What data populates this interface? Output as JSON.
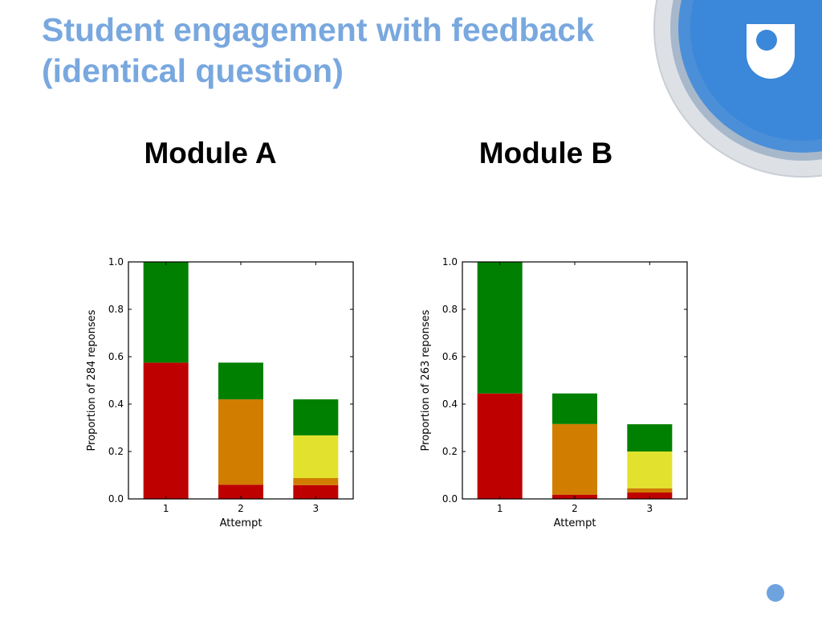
{
  "slide": {
    "title_line1": "Student engagement with feedback",
    "title_line2": "(identical question)"
  },
  "logo": {
    "icon": "open-university-logo-icon"
  },
  "colors": {
    "title": "#79a8df",
    "correct": "#008000",
    "wrong": "#bf0000",
    "orange": "#d07d00",
    "yellow": "#e2e22e"
  },
  "chart_data": [
    {
      "type": "bar",
      "stacked": true,
      "title": "Module A",
      "xlabel": "Attempt",
      "ylabel": "Proportion of 284 reponses",
      "categories": [
        "1",
        "2",
        "3"
      ],
      "ylim": [
        0,
        1
      ],
      "yticks": [
        "0.0",
        "0.2",
        "0.4",
        "0.6",
        "0.8",
        "1.0"
      ],
      "series": [
        {
          "color": "#bf0000",
          "values": [
            0.575,
            0.06,
            0.058
          ]
        },
        {
          "color": "#d07d00",
          "values": [
            0,
            0.36,
            0.03
          ]
        },
        {
          "color": "#e2e22e",
          "values": [
            0,
            0,
            0.18
          ]
        },
        {
          "color": "#008000",
          "values": [
            0.425,
            0.155,
            0.152
          ]
        }
      ]
    },
    {
      "type": "bar",
      "stacked": true,
      "title": "Module B",
      "xlabel": "Attempt",
      "ylabel": "Proportion of 263 reponses",
      "categories": [
        "1",
        "2",
        "3"
      ],
      "ylim": [
        0,
        1
      ],
      "yticks": [
        "0.0",
        "0.2",
        "0.4",
        "0.6",
        "0.8",
        "1.0"
      ],
      "series": [
        {
          "color": "#bf0000",
          "values": [
            0.445,
            0.018,
            0.027
          ]
        },
        {
          "color": "#d07d00",
          "values": [
            0,
            0.298,
            0.018
          ]
        },
        {
          "color": "#e2e22e",
          "values": [
            0,
            0,
            0.155
          ]
        },
        {
          "color": "#008000",
          "values": [
            0.555,
            0.129,
            0.115
          ]
        }
      ]
    }
  ]
}
